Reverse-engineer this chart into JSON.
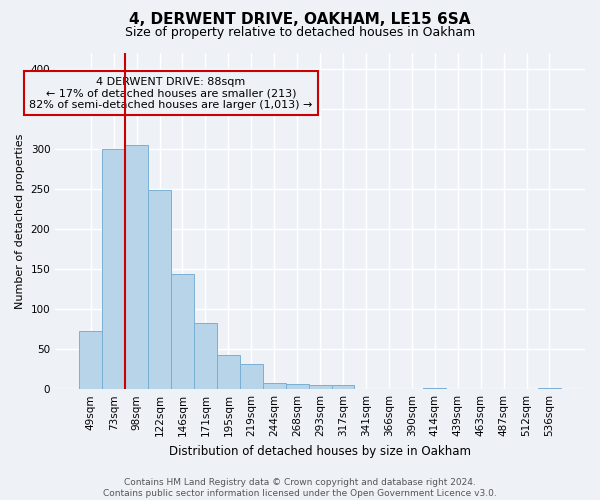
{
  "title": "4, DERWENT DRIVE, OAKHAM, LE15 6SA",
  "subtitle": "Size of property relative to detached houses in Oakham",
  "xlabel": "Distribution of detached houses by size in Oakham",
  "ylabel": "Number of detached properties",
  "bar_labels": [
    "49sqm",
    "73sqm",
    "98sqm",
    "122sqm",
    "146sqm",
    "171sqm",
    "195sqm",
    "219sqm",
    "244sqm",
    "268sqm",
    "293sqm",
    "317sqm",
    "341sqm",
    "366sqm",
    "390sqm",
    "414sqm",
    "439sqm",
    "463sqm",
    "487sqm",
    "512sqm",
    "536sqm"
  ],
  "bar_values": [
    72,
    300,
    305,
    249,
    144,
    83,
    43,
    32,
    8,
    6,
    5,
    5,
    0,
    0,
    0,
    2,
    0,
    0,
    0,
    0,
    2
  ],
  "bar_color": "#b8d4e8",
  "bar_edge_color": "#7aafd4",
  "vline_color": "#cc0000",
  "vline_x_index": 1.5,
  "annotation_text": "4 DERWENT DRIVE: 88sqm\n← 17% of detached houses are smaller (213)\n82% of semi-detached houses are larger (1,013) →",
  "annotation_box_edge": "#cc0000",
  "ylim": [
    0,
    420
  ],
  "yticks": [
    0,
    50,
    100,
    150,
    200,
    250,
    300,
    350,
    400
  ],
  "background_color": "#eef2f7",
  "grid_color": "#ffffff",
  "title_fontsize": 11,
  "subtitle_fontsize": 9,
  "xlabel_fontsize": 8.5,
  "ylabel_fontsize": 8,
  "tick_fontsize": 7.5,
  "annotation_fontsize": 8,
  "footer_line1": "Contains HM Land Registry data © Crown copyright and database right 2024.",
  "footer_line2": "Contains public sector information licensed under the Open Government Licence v3.0.",
  "footer_fontsize": 6.5
}
